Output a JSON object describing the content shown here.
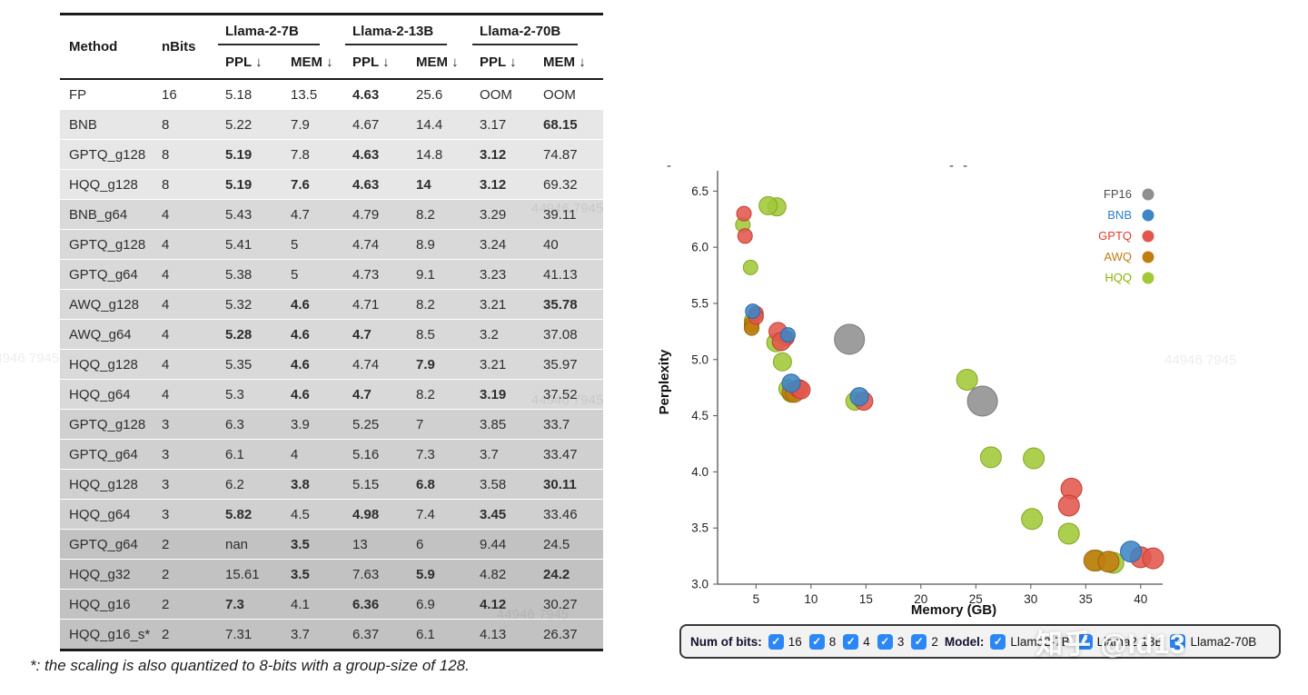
{
  "table": {
    "columns": {
      "method": "Method",
      "nbits": "nBits",
      "groups": [
        {
          "label": "Llama-2-7B"
        },
        {
          "label": "Llama-2-13B"
        },
        {
          "label": "Llama-2-70B"
        }
      ],
      "sub": [
        "PPL ↓",
        "MEM ↓"
      ]
    },
    "rows": [
      {
        "method": "FP",
        "bits": "16",
        "cells": [
          "5.18",
          "13.5",
          "4.63",
          "25.6",
          "OOM",
          "OOM"
        ],
        "bold": [
          2
        ]
      },
      {
        "method": "BNB",
        "bits": "8",
        "cells": [
          "5.22",
          "7.9",
          "4.67",
          "14.4",
          "3.17",
          "68.15"
        ],
        "bold": [
          5
        ]
      },
      {
        "method": "GPTQ_g128",
        "bits": "8",
        "cells": [
          "5.19",
          "7.8",
          "4.63",
          "14.8",
          "3.12",
          "74.87"
        ],
        "bold": [
          0,
          2,
          4
        ]
      },
      {
        "method": "HQQ_g128",
        "bits": "8",
        "cells": [
          "5.19",
          "7.6",
          "4.63",
          "14",
          "3.12",
          "69.32"
        ],
        "bold": [
          0,
          1,
          2,
          3,
          4
        ]
      },
      {
        "method": "BNB_g64",
        "bits": "4",
        "cells": [
          "5.43",
          "4.7",
          "4.79",
          "8.2",
          "3.29",
          "39.11"
        ],
        "bold": []
      },
      {
        "method": "GPTQ_g128",
        "bits": "4",
        "cells": [
          "5.41",
          "5",
          "4.74",
          "8.9",
          "3.24",
          "40"
        ],
        "bold": []
      },
      {
        "method": "GPTQ_g64",
        "bits": "4",
        "cells": [
          "5.38",
          "5",
          "4.73",
          "9.1",
          "3.23",
          "41.13"
        ],
        "bold": []
      },
      {
        "method": "AWQ_g128",
        "bits": "4",
        "cells": [
          "5.32",
          "4.6",
          "4.71",
          "8.2",
          "3.21",
          "35.78"
        ],
        "bold": [
          1,
          5
        ]
      },
      {
        "method": "AWQ_g64",
        "bits": "4",
        "cells": [
          "5.28",
          "4.6",
          "4.7",
          "8.5",
          "3.2",
          "37.08"
        ],
        "bold": [
          0,
          1,
          2
        ]
      },
      {
        "method": "HQQ_g128",
        "bits": "4",
        "cells": [
          "5.35",
          "4.6",
          "4.74",
          "7.9",
          "3.21",
          "35.97"
        ],
        "bold": [
          1,
          3
        ]
      },
      {
        "method": "HQQ_g64",
        "bits": "4",
        "cells": [
          "5.3",
          "4.6",
          "4.7",
          "8.2",
          "3.19",
          "37.52"
        ],
        "bold": [
          1,
          2,
          4
        ]
      },
      {
        "method": "GPTQ_g128",
        "bits": "3",
        "cells": [
          "6.3",
          "3.9",
          "5.25",
          "7",
          "3.85",
          "33.7"
        ],
        "bold": []
      },
      {
        "method": "GPTQ_g64",
        "bits": "3",
        "cells": [
          "6.1",
          "4",
          "5.16",
          "7.3",
          "3.7",
          "33.47"
        ],
        "bold": []
      },
      {
        "method": "HQQ_g128",
        "bits": "3",
        "cells": [
          "6.2",
          "3.8",
          "5.15",
          "6.8",
          "3.58",
          "30.11"
        ],
        "bold": [
          1,
          3,
          5
        ]
      },
      {
        "method": "HQQ_g64",
        "bits": "3",
        "cells": [
          "5.82",
          "4.5",
          "4.98",
          "7.4",
          "3.45",
          "33.46"
        ],
        "bold": [
          0,
          2,
          4
        ]
      },
      {
        "method": "GPTQ_g64",
        "bits": "2",
        "cells": [
          "nan",
          "3.5",
          "13",
          "6",
          "9.44",
          "24.5"
        ],
        "bold": [
          1
        ]
      },
      {
        "method": "HQQ_g32",
        "bits": "2",
        "cells": [
          "15.61",
          "3.5",
          "7.63",
          "5.9",
          "4.82",
          "24.2"
        ],
        "bold": [
          1,
          3,
          5
        ]
      },
      {
        "method": "HQQ_g16",
        "bits": "2",
        "cells": [
          "7.3",
          "4.1",
          "6.36",
          "6.9",
          "4.12",
          "30.27"
        ],
        "bold": [
          0,
          2,
          4
        ]
      },
      {
        "method": "HQQ_g16_s*",
        "bits": "2",
        "cells": [
          "7.31",
          "3.7",
          "6.37",
          "6.1",
          "4.13",
          "26.37"
        ],
        "bold": []
      }
    ]
  },
  "footnote": "*: the scaling is also quantized to 8-bits with a group-size of 128.",
  "chart_data": {
    "type": "scatter",
    "xlabel": "Memory (GB)",
    "ylabel": "Perplexity",
    "xlim": [
      1.5,
      42
    ],
    "ylim": [
      3.0,
      6.6
    ],
    "xticks": [
      5,
      10,
      15,
      20,
      25,
      30,
      35,
      40
    ],
    "yticks": [
      3.0,
      3.5,
      4.0,
      4.5,
      5.0,
      5.5,
      6.0,
      6.5
    ],
    "grid": false,
    "legend_position": "top-right",
    "size_encoding": {
      "7B": 8,
      "13B": 10,
      "70B": 11.5,
      "FP16": 16.5
    },
    "legend": [
      {
        "label": "FP16",
        "color": "#8f8f8f",
        "label_color": "#4d4d4d"
      },
      {
        "label": "BNB",
        "color": "#3d85c6",
        "label_color": "#2d7fc1"
      },
      {
        "label": "GPTQ",
        "color": "#e2574c",
        "label_color": "#e03a2e"
      },
      {
        "label": "AWQ",
        "color": "#c07d10",
        "label_color": "#bf7c0f"
      },
      {
        "label": "HQQ",
        "color": "#a0c838",
        "label_color": "#86b300"
      }
    ],
    "series": [
      {
        "name": "HQQ",
        "color": "#a0c838",
        "stroke": "#83a621",
        "points": [
          {
            "x": 7.6,
            "y": 5.19,
            "model": "7B",
            "bits": 8
          },
          {
            "x": 4.6,
            "y": 5.35,
            "model": "7B",
            "bits": 4
          },
          {
            "x": 4.6,
            "y": 5.3,
            "model": "7B",
            "bits": 4
          },
          {
            "x": 3.8,
            "y": 6.2,
            "model": "7B",
            "bits": 3
          },
          {
            "x": 4.5,
            "y": 5.82,
            "model": "7B",
            "bits": 3
          },
          {
            "x": 14,
            "y": 4.63,
            "model": "13B",
            "bits": 8
          },
          {
            "x": 7.9,
            "y": 4.74,
            "model": "13B",
            "bits": 4
          },
          {
            "x": 8.2,
            "y": 4.7,
            "model": "13B",
            "bits": 4
          },
          {
            "x": 6.8,
            "y": 5.15,
            "model": "13B",
            "bits": 3
          },
          {
            "x": 7.4,
            "y": 4.98,
            "model": "13B",
            "bits": 3
          },
          {
            "x": 6.9,
            "y": 6.36,
            "model": "13B",
            "bits": 2
          },
          {
            "x": 6.1,
            "y": 6.37,
            "model": "13B",
            "bits": 2
          },
          {
            "x": 35.97,
            "y": 3.21,
            "model": "70B",
            "bits": 4
          },
          {
            "x": 37.52,
            "y": 3.19,
            "model": "70B",
            "bits": 4
          },
          {
            "x": 30.11,
            "y": 3.58,
            "model": "70B",
            "bits": 3
          },
          {
            "x": 33.46,
            "y": 3.45,
            "model": "70B",
            "bits": 3
          },
          {
            "x": 24.2,
            "y": 4.82,
            "model": "70B",
            "bits": 2
          },
          {
            "x": 26.37,
            "y": 4.13,
            "model": "70B",
            "bits": 2
          },
          {
            "x": 30.27,
            "y": 4.12,
            "model": "70B",
            "bits": 2
          }
        ]
      },
      {
        "name": "AWQ",
        "color": "#c07d10",
        "stroke": "#9a640b",
        "points": [
          {
            "x": 4.6,
            "y": 5.32,
            "model": "7B",
            "bits": 4
          },
          {
            "x": 4.6,
            "y": 5.28,
            "model": "7B",
            "bits": 4
          },
          {
            "x": 8.2,
            "y": 4.71,
            "model": "13B",
            "bits": 4
          },
          {
            "x": 8.5,
            "y": 4.7,
            "model": "13B",
            "bits": 4
          },
          {
            "x": 35.78,
            "y": 3.21,
            "model": "70B",
            "bits": 4
          },
          {
            "x": 37.08,
            "y": 3.2,
            "model": "70B",
            "bits": 4
          }
        ]
      },
      {
        "name": "GPTQ",
        "color": "#e2574c",
        "stroke": "#c43d33",
        "points": [
          {
            "x": 7.8,
            "y": 5.19,
            "model": "7B",
            "bits": 8
          },
          {
            "x": 5,
            "y": 5.41,
            "model": "7B",
            "bits": 4
          },
          {
            "x": 5,
            "y": 5.38,
            "model": "7B",
            "bits": 4
          },
          {
            "x": 3.9,
            "y": 6.3,
            "model": "7B",
            "bits": 3
          },
          {
            "x": 4,
            "y": 6.1,
            "model": "7B",
            "bits": 3
          },
          {
            "x": 14.8,
            "y": 4.63,
            "model": "13B",
            "bits": 8
          },
          {
            "x": 8.9,
            "y": 4.74,
            "model": "13B",
            "bits": 4
          },
          {
            "x": 9.1,
            "y": 4.73,
            "model": "13B",
            "bits": 4
          },
          {
            "x": 7,
            "y": 5.25,
            "model": "13B",
            "bits": 3
          },
          {
            "x": 7.3,
            "y": 5.16,
            "model": "13B",
            "bits": 3
          },
          {
            "x": 40,
            "y": 3.24,
            "model": "70B",
            "bits": 4
          },
          {
            "x": 41.13,
            "y": 3.23,
            "model": "70B",
            "bits": 4
          },
          {
            "x": 33.7,
            "y": 3.85,
            "model": "70B",
            "bits": 3
          },
          {
            "x": 33.47,
            "y": 3.7,
            "model": "70B",
            "bits": 3
          }
        ]
      },
      {
        "name": "BNB",
        "color": "#3d85c6",
        "stroke": "#2a6aa5",
        "points": [
          {
            "x": 7.9,
            "y": 5.22,
            "model": "7B",
            "bits": 8
          },
          {
            "x": 4.7,
            "y": 5.43,
            "model": "7B",
            "bits": 4
          },
          {
            "x": 14.4,
            "y": 4.67,
            "model": "13B",
            "bits": 8
          },
          {
            "x": 8.2,
            "y": 4.79,
            "model": "13B",
            "bits": 4
          },
          {
            "x": 39.11,
            "y": 3.29,
            "model": "70B",
            "bits": 4
          }
        ]
      },
      {
        "name": "FP16",
        "color": "#8f8f8f",
        "stroke": "#7a7a7a",
        "points": [
          {
            "x": 13.5,
            "y": 5.18,
            "model": "7B",
            "bits": 16
          },
          {
            "x": 25.6,
            "y": 4.63,
            "model": "13B",
            "bits": 16
          }
        ]
      }
    ]
  },
  "filter_bar": {
    "bits": {
      "label": "Num of bits:",
      "options": [
        {
          "label": "16",
          "checked": true
        },
        {
          "label": "8",
          "checked": true
        },
        {
          "label": "4",
          "checked": true
        },
        {
          "label": "3",
          "checked": true
        },
        {
          "label": "2",
          "checked": true
        }
      ]
    },
    "models": {
      "label": "Model:",
      "options": [
        {
          "label": "Llama2-7B",
          "checked": true
        },
        {
          "label": "Llama2-13B",
          "checked": true
        },
        {
          "label": "Llama2-70B",
          "checked": true
        }
      ]
    }
  },
  "icons": {
    "check": "✓"
  },
  "stray_marks": [
    "-",
    "- -"
  ],
  "watermark": {
    "text": "知乎 @Id13",
    "faint": "44946 7945"
  }
}
